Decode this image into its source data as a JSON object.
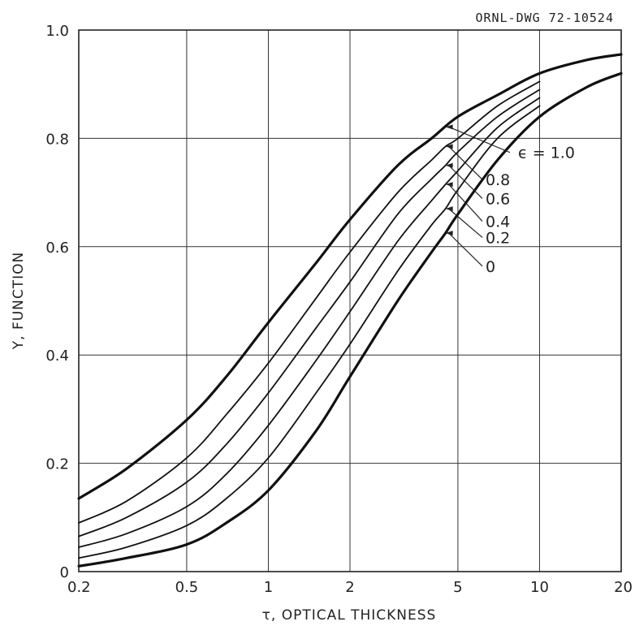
{
  "drawing_number": "ORNL-DWG 72-10524",
  "chart_data": {
    "type": "line",
    "title": "",
    "xlabel": "τ, OPTICAL THICKNESS",
    "ylabel": "Y, FUNCTION",
    "x_scale": "log",
    "xlim": [
      0.2,
      20
    ],
    "ylim": [
      0,
      1.0
    ],
    "x_ticks": [
      0.2,
      0.5,
      1,
      2,
      5,
      10,
      20
    ],
    "x_tick_labels": [
      "0.2",
      "0.5",
      "1",
      "2",
      "5",
      "10",
      "20"
    ],
    "y_ticks": [
      0,
      0.2,
      0.4,
      0.6,
      0.8,
      1.0
    ],
    "y_tick_labels": [
      "0",
      "0.2",
      "0.4",
      "0.6",
      "0.8",
      "1.0"
    ],
    "grid": true,
    "series": [
      {
        "name": "ϵ = 1.0",
        "label": "ϵ = 1.0",
        "label_y": 0.765,
        "line": "thick",
        "x": [
          0.2,
          0.3,
          0.5,
          0.7,
          1,
          1.5,
          2,
          3,
          4,
          5,
          7,
          10,
          15,
          20
        ],
        "y": [
          0.135,
          0.19,
          0.28,
          0.36,
          0.46,
          0.57,
          0.65,
          0.75,
          0.8,
          0.84,
          0.88,
          0.92,
          0.945,
          0.955
        ]
      },
      {
        "name": "0.8",
        "label": "0.8",
        "label_y": 0.715,
        "line": "thin",
        "x": [
          0.2,
          0.3,
          0.5,
          0.7,
          1,
          1.5,
          2,
          3,
          4,
          4.5,
          5,
          7,
          10
        ],
        "y": [
          0.09,
          0.13,
          0.21,
          0.29,
          0.385,
          0.505,
          0.59,
          0.7,
          0.76,
          0.785,
          0.8,
          0.86,
          0.905
        ]
      },
      {
        "name": "0.6",
        "label": "0.6",
        "label_y": 0.68,
        "line": "thin",
        "x": [
          0.2,
          0.3,
          0.5,
          0.7,
          1,
          1.5,
          2,
          3,
          4,
          4.5,
          5,
          7,
          10
        ],
        "y": [
          0.065,
          0.1,
          0.165,
          0.235,
          0.33,
          0.45,
          0.535,
          0.66,
          0.725,
          0.75,
          0.775,
          0.84,
          0.89
        ]
      },
      {
        "name": "0.4",
        "label": "0.4",
        "label_y": 0.638,
        "line": "thin",
        "x": [
          0.2,
          0.3,
          0.5,
          0.7,
          1,
          1.5,
          2,
          3,
          4,
          4.5,
          5,
          7,
          10
        ],
        "y": [
          0.045,
          0.07,
          0.12,
          0.18,
          0.27,
          0.39,
          0.48,
          0.61,
          0.685,
          0.715,
          0.74,
          0.82,
          0.875
        ]
      },
      {
        "name": "0.2",
        "label": "0.2",
        "label_y": 0.608,
        "line": "thin",
        "x": [
          0.2,
          0.3,
          0.5,
          0.7,
          1,
          1.5,
          2,
          3,
          4,
          4.5,
          5,
          7,
          10
        ],
        "y": [
          0.025,
          0.045,
          0.085,
          0.135,
          0.21,
          0.33,
          0.42,
          0.555,
          0.64,
          0.67,
          0.705,
          0.8,
          0.86
        ]
      },
      {
        "name": "0",
        "label": "0",
        "label_y": 0.555,
        "line": "thick",
        "x": [
          0.2,
          0.3,
          0.5,
          0.7,
          1,
          1.5,
          2,
          3,
          4,
          4.5,
          5,
          7,
          10,
          15,
          20
        ],
        "y": [
          0.01,
          0.025,
          0.05,
          0.09,
          0.15,
          0.26,
          0.36,
          0.5,
          0.59,
          0.625,
          0.66,
          0.76,
          0.84,
          0.895,
          0.92
        ]
      }
    ]
  }
}
